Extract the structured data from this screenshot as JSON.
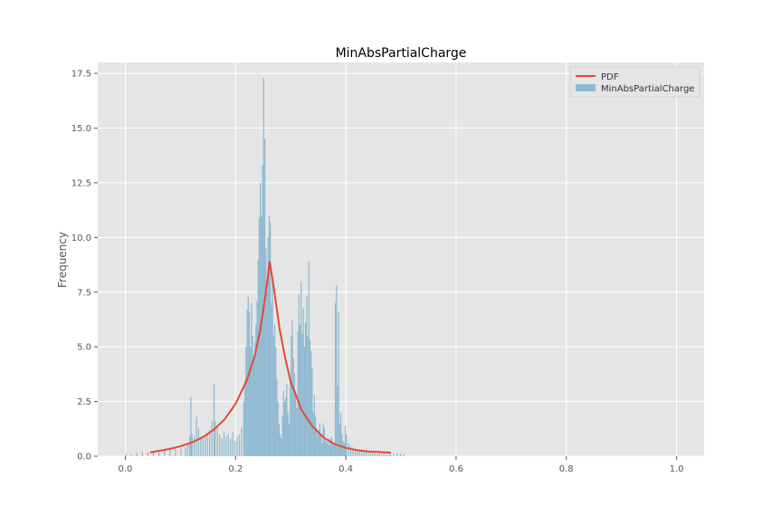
{
  "chart_data": {
    "type": "bar",
    "title": "MinAbsPartialCharge",
    "xlabel": "",
    "ylabel": "Frequency",
    "xlim": [
      -0.05,
      1.05
    ],
    "ylim": [
      0,
      18.0
    ],
    "xticks": [
      0.0,
      0.2,
      0.4,
      0.6,
      0.8,
      1.0
    ],
    "xtick_labels": [
      "0.0",
      "0.2",
      "0.4",
      "0.6",
      "0.8",
      "1.0"
    ],
    "yticks": [
      0.0,
      2.5,
      5.0,
      7.5,
      10.0,
      12.5,
      15.0,
      17.5
    ],
    "ytick_labels": [
      "0.0",
      "2.5",
      "5.0",
      "7.5",
      "10.0",
      "12.5",
      "15.0",
      "17.5"
    ],
    "grid": true,
    "legend_position": "top-right",
    "legend": [
      "PDF",
      "MinAbsPartialCharge"
    ],
    "colors": {
      "pdf": "#e24a33",
      "hist": "#8eb9d1",
      "plot_bg": "#e5e5e5",
      "grid": "#ffffff",
      "text": "#555555"
    },
    "histogram": {
      "name": "MinAbsPartialCharge",
      "bin_width": 0.002,
      "bins": [
        [
          0.0,
          0.1
        ],
        [
          0.01,
          0.1
        ],
        [
          0.02,
          0.15
        ],
        [
          0.03,
          0.2
        ],
        [
          0.04,
          0.2
        ],
        [
          0.05,
          0.2
        ],
        [
          0.06,
          0.25
        ],
        [
          0.07,
          0.25
        ],
        [
          0.08,
          0.3
        ],
        [
          0.09,
          0.3
        ],
        [
          0.1,
          0.35
        ],
        [
          0.108,
          0.4
        ],
        [
          0.112,
          0.6
        ],
        [
          0.116,
          0.9
        ],
        [
          0.118,
          2.7
        ],
        [
          0.12,
          1.0
        ],
        [
          0.124,
          0.9
        ],
        [
          0.128,
          1.8
        ],
        [
          0.132,
          1.3
        ],
        [
          0.136,
          0.9
        ],
        [
          0.14,
          0.8
        ],
        [
          0.144,
          0.9
        ],
        [
          0.148,
          1.0
        ],
        [
          0.152,
          1.2
        ],
        [
          0.156,
          1.6
        ],
        [
          0.16,
          3.3
        ],
        [
          0.162,
          1.6
        ],
        [
          0.166,
          1.3
        ],
        [
          0.17,
          1.0
        ],
        [
          0.174,
          0.8
        ],
        [
          0.178,
          1.1
        ],
        [
          0.182,
          0.9
        ],
        [
          0.186,
          1.0
        ],
        [
          0.19,
          0.8
        ],
        [
          0.194,
          1.1
        ],
        [
          0.198,
          0.7
        ],
        [
          0.202,
          0.9
        ],
        [
          0.206,
          1.0
        ],
        [
          0.21,
          1.3
        ],
        [
          0.214,
          2.5
        ],
        [
          0.216,
          3.5
        ],
        [
          0.218,
          5.0
        ],
        [
          0.22,
          6.7
        ],
        [
          0.222,
          7.3
        ],
        [
          0.224,
          6.6
        ],
        [
          0.226,
          5.0
        ],
        [
          0.228,
          7.0
        ],
        [
          0.23,
          5.5
        ],
        [
          0.232,
          4.6
        ],
        [
          0.234,
          5.2
        ],
        [
          0.236,
          6.0
        ],
        [
          0.238,
          7.1
        ],
        [
          0.24,
          9.0
        ],
        [
          0.242,
          10.9
        ],
        [
          0.244,
          12.5
        ],
        [
          0.246,
          11.0
        ],
        [
          0.248,
          13.3
        ],
        [
          0.25,
          17.3
        ],
        [
          0.252,
          14.5
        ],
        [
          0.254,
          9.5
        ],
        [
          0.256,
          7.5
        ],
        [
          0.258,
          10.0
        ],
        [
          0.26,
          11.0
        ],
        [
          0.262,
          10.7
        ],
        [
          0.264,
          7.0
        ],
        [
          0.266,
          8.1
        ],
        [
          0.268,
          5.5
        ],
        [
          0.27,
          6.0
        ],
        [
          0.272,
          5.0
        ],
        [
          0.274,
          3.5
        ],
        [
          0.276,
          2.5
        ],
        [
          0.278,
          1.5
        ],
        [
          0.28,
          1.0
        ],
        [
          0.282,
          0.8
        ],
        [
          0.284,
          1.8
        ],
        [
          0.286,
          3.0
        ],
        [
          0.288,
          2.5
        ],
        [
          0.29,
          2.7
        ],
        [
          0.292,
          3.3
        ],
        [
          0.294,
          2.0
        ],
        [
          0.296,
          1.5
        ],
        [
          0.298,
          3.6
        ],
        [
          0.3,
          5.5
        ],
        [
          0.302,
          6.2
        ],
        [
          0.304,
          4.5
        ],
        [
          0.306,
          3.8
        ],
        [
          0.308,
          3.0
        ],
        [
          0.31,
          2.2
        ],
        [
          0.312,
          5.7
        ],
        [
          0.314,
          7.4
        ],
        [
          0.316,
          6.0
        ],
        [
          0.318,
          8.0
        ],
        [
          0.32,
          5.6
        ],
        [
          0.322,
          6.8
        ],
        [
          0.324,
          5.0
        ],
        [
          0.326,
          6.1
        ],
        [
          0.328,
          7.3
        ],
        [
          0.33,
          5.5
        ],
        [
          0.332,
          8.9
        ],
        [
          0.334,
          5.3
        ],
        [
          0.336,
          4.8
        ],
        [
          0.338,
          4.0
        ],
        [
          0.34,
          2.0
        ],
        [
          0.342,
          2.8
        ],
        [
          0.344,
          1.8
        ],
        [
          0.346,
          1.3
        ],
        [
          0.348,
          1.0
        ],
        [
          0.35,
          1.2
        ],
        [
          0.352,
          1.5
        ],
        [
          0.354,
          1.0
        ],
        [
          0.356,
          0.6
        ],
        [
          0.358,
          1.5
        ],
        [
          0.36,
          1.3
        ],
        [
          0.362,
          0.7
        ],
        [
          0.364,
          0.8
        ],
        [
          0.366,
          0.6
        ],
        [
          0.368,
          0.8
        ],
        [
          0.37,
          0.5
        ],
        [
          0.372,
          0.9
        ],
        [
          0.374,
          0.8
        ],
        [
          0.376,
          0.6
        ],
        [
          0.378,
          0.5
        ],
        [
          0.38,
          7.0
        ],
        [
          0.382,
          7.8
        ],
        [
          0.384,
          3.2
        ],
        [
          0.386,
          6.6
        ],
        [
          0.388,
          1.5
        ],
        [
          0.39,
          2.0
        ],
        [
          0.392,
          1.0
        ],
        [
          0.394,
          0.7
        ],
        [
          0.396,
          0.6
        ],
        [
          0.398,
          1.4
        ],
        [
          0.4,
          1.0
        ],
        [
          0.404,
          0.6
        ],
        [
          0.408,
          0.5
        ],
        [
          0.412,
          0.4
        ],
        [
          0.416,
          0.35
        ],
        [
          0.42,
          0.3
        ],
        [
          0.424,
          0.3
        ],
        [
          0.428,
          0.25
        ],
        [
          0.432,
          0.2
        ],
        [
          0.436,
          0.25
        ],
        [
          0.44,
          0.2
        ],
        [
          0.444,
          0.2
        ],
        [
          0.448,
          0.15
        ],
        [
          0.452,
          0.15
        ],
        [
          0.456,
          0.1
        ],
        [
          0.46,
          0.15
        ],
        [
          0.464,
          0.1
        ],
        [
          0.468,
          0.2
        ],
        [
          0.472,
          0.1
        ],
        [
          0.476,
          0.1
        ],
        [
          0.48,
          0.15
        ],
        [
          0.486,
          0.1
        ],
        [
          0.492,
          0.15
        ],
        [
          0.498,
          0.1
        ],
        [
          0.504,
          0.1
        ]
      ]
    },
    "pdf_curve": {
      "name": "PDF",
      "points": [
        [
          0.045,
          0.17
        ],
        [
          0.06,
          0.24
        ],
        [
          0.08,
          0.33
        ],
        [
          0.1,
          0.45
        ],
        [
          0.12,
          0.62
        ],
        [
          0.14,
          0.86
        ],
        [
          0.16,
          1.2
        ],
        [
          0.18,
          1.68
        ],
        [
          0.2,
          2.4
        ],
        [
          0.22,
          3.45
        ],
        [
          0.235,
          4.6
        ],
        [
          0.245,
          5.8
        ],
        [
          0.255,
          7.5
        ],
        [
          0.262,
          8.9
        ],
        [
          0.27,
          7.6
        ],
        [
          0.28,
          5.8
        ],
        [
          0.29,
          4.5
        ],
        [
          0.3,
          3.4
        ],
        [
          0.32,
          2.1
        ],
        [
          0.34,
          1.35
        ],
        [
          0.36,
          0.85
        ],
        [
          0.38,
          0.55
        ],
        [
          0.4,
          0.38
        ],
        [
          0.42,
          0.28
        ],
        [
          0.44,
          0.22
        ],
        [
          0.46,
          0.19
        ],
        [
          0.482,
          0.16
        ]
      ]
    }
  }
}
